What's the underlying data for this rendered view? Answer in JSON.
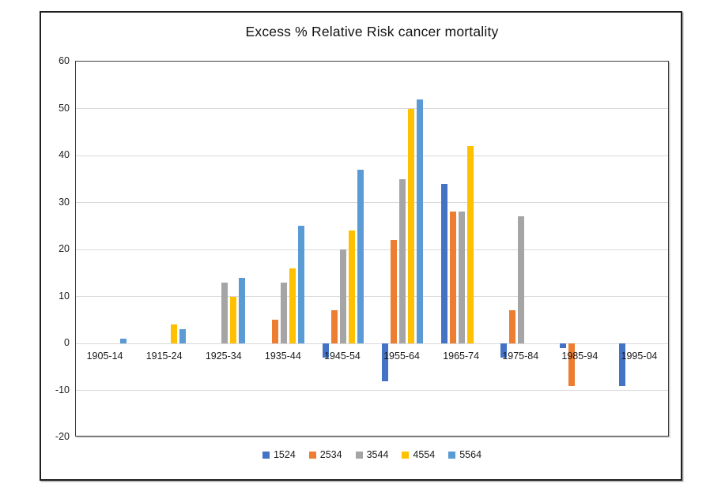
{
  "title": "Excess % Relative Risk cancer mortality",
  "chart_data": {
    "type": "bar",
    "title": "Excess % Relative Risk cancer mortality",
    "xlabel": "",
    "ylabel": "",
    "grid": true,
    "legend_position": "bottom",
    "categories": [
      "1905-14",
      "1915-24",
      "1925-34",
      "1935-44",
      "1945-54",
      "1955-64",
      "1965-74",
      "1975-84",
      "1985-94",
      "1995-04"
    ],
    "series": [
      {
        "name": "1524",
        "color": "#4472C4",
        "values": [
          null,
          null,
          null,
          null,
          -3,
          -8,
          34,
          -3,
          -1,
          -9
        ]
      },
      {
        "name": "2534",
        "color": "#ED7D31",
        "values": [
          null,
          null,
          null,
          5,
          7,
          22,
          28,
          7,
          -9,
          null
        ]
      },
      {
        "name": "3544",
        "color": "#A5A5A5",
        "values": [
          null,
          null,
          13,
          13,
          20,
          35,
          28,
          27,
          null,
          null
        ]
      },
      {
        "name": "4554",
        "color": "#FFC000",
        "values": [
          null,
          4,
          10,
          16,
          24,
          50,
          42,
          null,
          null,
          null
        ]
      },
      {
        "name": "5564",
        "color": "#5B9BD5",
        "values": [
          1,
          3,
          14,
          25,
          37,
          52,
          null,
          null,
          null,
          null
        ]
      }
    ],
    "y_axis": {
      "min": -20,
      "max": 60,
      "step": 10,
      "tick_labels": [
        "60",
        "50",
        "40",
        "30",
        "20",
        "10",
        "0",
        "-10",
        "-20"
      ]
    },
    "gridline_color": "#d9d9d9"
  }
}
